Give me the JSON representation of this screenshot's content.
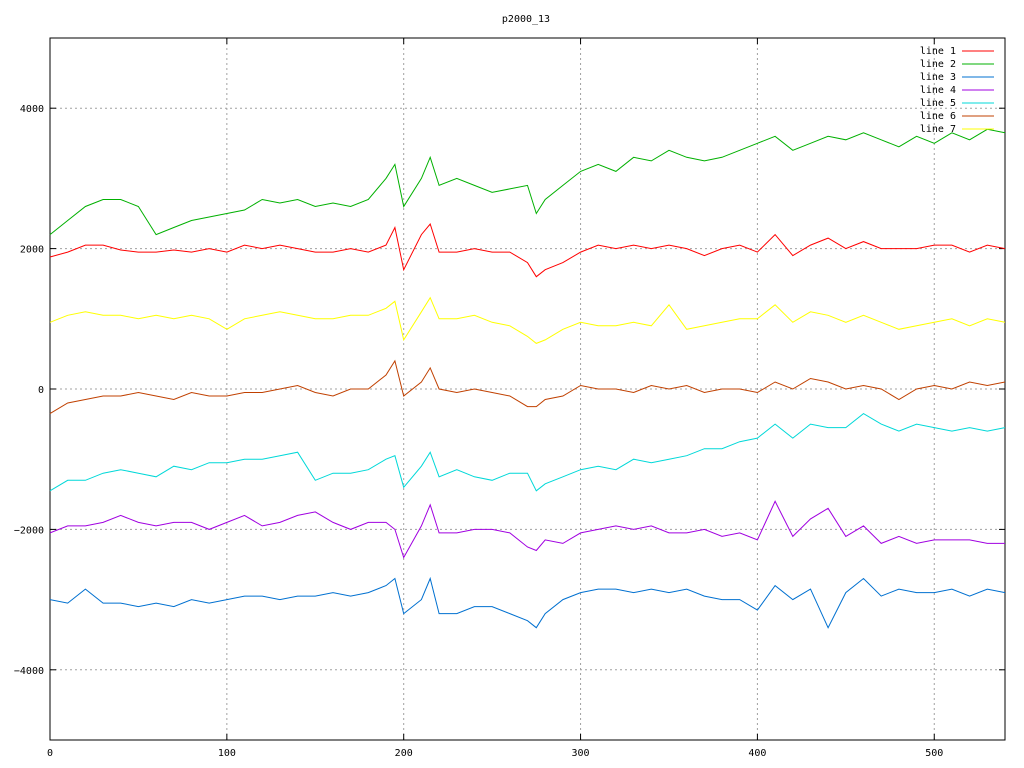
{
  "chart_data": {
    "type": "line",
    "title": "p2000_13",
    "xlabel": "",
    "ylabel": "",
    "xlim": [
      0,
      540
    ],
    "ylim": [
      -5000,
      5000
    ],
    "x_ticks": [
      0,
      100,
      200,
      300,
      400,
      500
    ],
    "y_ticks": [
      -4000,
      -2000,
      0,
      2000,
      4000
    ],
    "grid": true,
    "legend_position": "top-right",
    "x": [
      0,
      10,
      20,
      30,
      40,
      50,
      60,
      70,
      80,
      90,
      100,
      110,
      120,
      130,
      140,
      150,
      160,
      170,
      180,
      190,
      195,
      200,
      210,
      215,
      220,
      230,
      240,
      250,
      260,
      270,
      275,
      280,
      290,
      300,
      310,
      320,
      330,
      340,
      350,
      360,
      370,
      380,
      390,
      400,
      410,
      420,
      430,
      440,
      450,
      460,
      470,
      480,
      490,
      500,
      510,
      520,
      530,
      540
    ],
    "series": [
      {
        "name": "line 1",
        "color": "#ff0000",
        "values": [
          1880,
          1950,
          2050,
          2050,
          1980,
          1950,
          1950,
          1980,
          1950,
          2000,
          1950,
          2050,
          2000,
          2050,
          2000,
          1950,
          1950,
          2000,
          1950,
          2050,
          2300,
          1700,
          2200,
          2350,
          1950,
          1950,
          2000,
          1950,
          1950,
          1800,
          1600,
          1700,
          1800,
          1950,
          2050,
          2000,
          2050,
          2000,
          2050,
          2000,
          1900,
          2000,
          2050,
          1950,
          2200,
          1900,
          2050,
          2150,
          2000,
          2100,
          2000,
          2000,
          2000,
          2050,
          2050,
          1950,
          2050,
          2000
        ]
      },
      {
        "name": "line 2",
        "color": "#00b000",
        "values": [
          2200,
          2400,
          2600,
          2700,
          2700,
          2600,
          2200,
          2300,
          2400,
          2450,
          2500,
          2550,
          2700,
          2650,
          2700,
          2600,
          2650,
          2600,
          2700,
          3000,
          3200,
          2600,
          3000,
          3300,
          2900,
          3000,
          2900,
          2800,
          2850,
          2900,
          2500,
          2700,
          2900,
          3100,
          3200,
          3100,
          3300,
          3250,
          3400,
          3300,
          3250,
          3300,
          3400,
          3500,
          3600,
          3400,
          3500,
          3600,
          3550,
          3650,
          3550,
          3450,
          3600,
          3500,
          3650,
          3550,
          3700,
          3650
        ]
      },
      {
        "name": "line 3",
        "color": "#0070d0",
        "values": [
          -3000,
          -3050,
          -2850,
          -3050,
          -3050,
          -3100,
          -3050,
          -3100,
          -3000,
          -3050,
          -3000,
          -2950,
          -2950,
          -3000,
          -2950,
          -2950,
          -2900,
          -2950,
          -2900,
          -2800,
          -2700,
          -3200,
          -3000,
          -2700,
          -3200,
          -3200,
          -3100,
          -3100,
          -3200,
          -3300,
          -3400,
          -3200,
          -3000,
          -2900,
          -2850,
          -2850,
          -2900,
          -2850,
          -2900,
          -2850,
          -2950,
          -3000,
          -3000,
          -3150,
          -2800,
          -3000,
          -2850,
          -3400,
          -2900,
          -2700,
          -2950,
          -2850,
          -2900,
          -2900,
          -2850,
          -2950,
          -2850,
          -2900
        ]
      },
      {
        "name": "line 4",
        "color": "#a000e0",
        "values": [
          -2050,
          -1950,
          -1950,
          -1900,
          -1800,
          -1900,
          -1950,
          -1900,
          -1900,
          -2000,
          -1900,
          -1800,
          -1950,
          -1900,
          -1800,
          -1750,
          -1900,
          -2000,
          -1900,
          -1900,
          -2000,
          -2400,
          -1950,
          -1650,
          -2050,
          -2050,
          -2000,
          -2000,
          -2050,
          -2250,
          -2300,
          -2150,
          -2200,
          -2050,
          -2000,
          -1950,
          -2000,
          -1950,
          -2050,
          -2050,
          -2000,
          -2100,
          -2050,
          -2150,
          -1600,
          -2100,
          -1850,
          -1700,
          -2100,
          -1950,
          -2200,
          -2100,
          -2200,
          -2150,
          -2150,
          -2150,
          -2200,
          -2200
        ]
      },
      {
        "name": "line 5",
        "color": "#00d8d8",
        "values": [
          -1450,
          -1300,
          -1300,
          -1200,
          -1150,
          -1200,
          -1250,
          -1100,
          -1150,
          -1050,
          -1050,
          -1000,
          -1000,
          -950,
          -900,
          -1300,
          -1200,
          -1200,
          -1150,
          -1000,
          -950,
          -1400,
          -1100,
          -900,
          -1250,
          -1150,
          -1250,
          -1300,
          -1200,
          -1200,
          -1450,
          -1350,
          -1250,
          -1150,
          -1100,
          -1150,
          -1000,
          -1050,
          -1000,
          -950,
          -850,
          -850,
          -750,
          -700,
          -500,
          -700,
          -500,
          -550,
          -550,
          -350,
          -500,
          -600,
          -500,
          -550,
          -600,
          -550,
          -600,
          -550
        ]
      },
      {
        "name": "line 6",
        "color": "#c04000",
        "values": [
          -350,
          -200,
          -150,
          -100,
          -100,
          -50,
          -100,
          -150,
          -50,
          -100,
          -100,
          -50,
          -50,
          0,
          50,
          -50,
          -100,
          0,
          0,
          200,
          400,
          -100,
          100,
          300,
          0,
          -50,
          0,
          -50,
          -100,
          -250,
          -250,
          -150,
          -100,
          50,
          0,
          0,
          -50,
          50,
          0,
          50,
          -50,
          0,
          0,
          -50,
          100,
          0,
          150,
          100,
          0,
          50,
          0,
          -150,
          0,
          50,
          0,
          100,
          50,
          100
        ]
      },
      {
        "name": "line 7",
        "color": "#ffff00",
        "values": [
          950,
          1050,
          1100,
          1050,
          1050,
          1000,
          1050,
          1000,
          1050,
          1000,
          850,
          1000,
          1050,
          1100,
          1050,
          1000,
          1000,
          1050,
          1050,
          1150,
          1250,
          700,
          1100,
          1300,
          1000,
          1000,
          1050,
          950,
          900,
          750,
          650,
          700,
          850,
          950,
          900,
          900,
          950,
          900,
          1200,
          850,
          900,
          950,
          1000,
          1000,
          1200,
          950,
          1100,
          1050,
          950,
          1050,
          950,
          850,
          900,
          950,
          1000,
          900,
          1000,
          950
        ]
      }
    ]
  }
}
